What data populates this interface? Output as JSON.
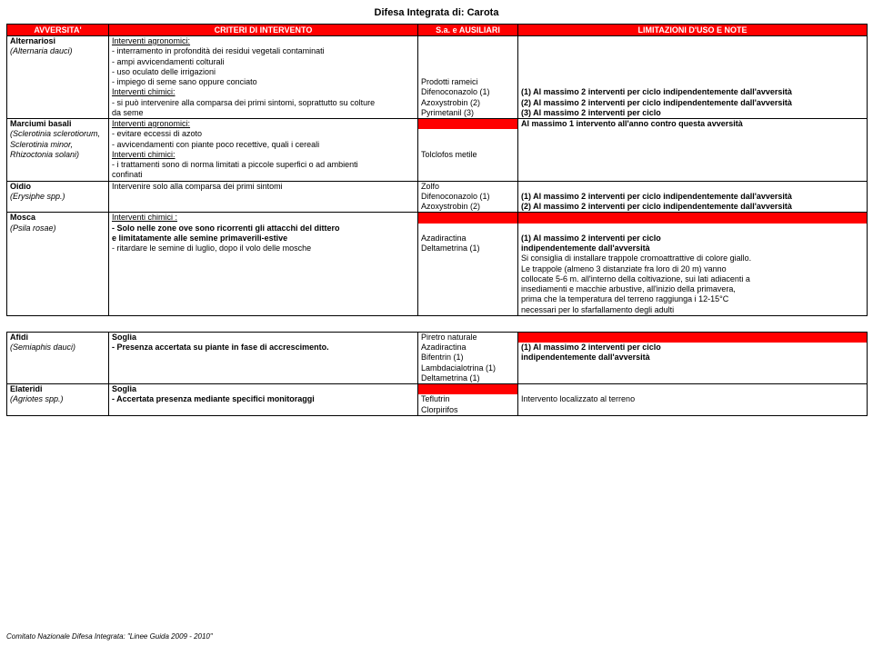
{
  "title": "Difesa Integrata di: Carota",
  "footer": "Comitato Nazionale Difesa Integrata: \"Linee Guida 2009 - 2010\"",
  "headers": {
    "adv": "AVVERSITA'",
    "crit": "CRITERI DI INTERVENTO",
    "aux": "S.a. e AUSILIARI",
    "lim": "LIMITAZIONI D'USO E NOTE"
  },
  "t": {
    "r1c1": "Alternariosi",
    "r1c2u": "Interventi agronomici:",
    "r2c1": "(Alternaria dauci)",
    "r2c2": " -  interramento in profondità dei residui vegetali contaminati",
    "r3c2": " -  ampi avvicendamenti colturali",
    "r4c2": " -  uso oculato delle irrigazioni",
    "r5c2": " -  impiego di seme sano oppure conciato",
    "r5c3": "Prodotti rameici",
    "r6c2u": "Interventi chimici:",
    "r6c3": "Difenoconazolo (1)",
    "r6c4": "(1) Al massimo 2 interventi per ciclo indipendentemente dall'avversità",
    "r7c2": " -  si può intervenire alla comparsa dei primi sintomi, soprattutto su colture",
    "r7c3": "Azoxystrobin (2)",
    "r7c4": "(2) Al massimo 2 interventi per ciclo indipendentemente dall'avversità",
    "r8c2": "da seme",
    "r8c3": "Pyrimetanil (3)",
    "r8c4": "(3) Al massimo 2 interventi per ciclo",
    "r9c1": "Marciumi basali",
    "r9c2u": "Interventi agronomici:",
    "r9c4": "Al massimo 1 intervento all'anno contro questa avversità",
    "r10c1": "(Sclerotinia sclerotiorum,",
    "r10c2": " -  evitare eccessi di azoto",
    "r11c1": "Sclerotinia minor,",
    "r11c2": " -  avvicendamenti con piante poco recettive, quali i cereali",
    "r12c1": "Rhizoctonia solani)",
    "r12c2u": "Interventi chimici:",
    "r12c3": "Tolclofos metile",
    "r13c2": " -  i trattamenti sono di norma limitati a piccole superfici o ad ambienti",
    "r14c2": "    confinati",
    "r15c1": "Oidio",
    "r15c2": "Intervenire solo alla comparsa dei primi sintomi",
    "r15c3": "Zolfo",
    "r16c1": "(Erysiphe spp.)",
    "r16c3": "Difenoconazolo (1)",
    "r16c4": "(1) Al massimo 2 interventi per ciclo indipendentemente dall'avversità",
    "r17c3": "Azoxystrobin (2)",
    "r17c4": "(2) Al massimo 2 interventi per ciclo indipendentemente dall'avversità",
    "r18c1": "Mosca",
    "r18c2u": "Interventi chimici :",
    "r19c1": "(Psila rosae)",
    "r19c2": " - Solo nelle zone ove sono ricorrenti gli attacchi del dittero",
    "r20c2": "    e limitatamente alle semine primaverili-estive",
    "r20c3": "Azadiractina",
    "r20c4": "(1) Al massimo 2 interventi per ciclo",
    "r21c2": " -   ritardare le semine di luglio, dopo il volo delle mosche",
    "r21c3": "Deltametrina (1)",
    "r21c4": "     indipendentemente dall'avversità",
    "r22c4": "Si consiglia di installare trappole cromoattrattive di colore giallo.",
    "r23c4": "Le trappole (almeno 3 distanziate fra loro di 20 m) vanno",
    "r24c4": "collocate 5-6 m. all'interno della coltivazione, sui lati adiacenti a",
    "r25c4": "insediamenti e macchie arbustive, all'inizio della primavera,",
    "r26c4": "prima che la temperatura del terreno raggiunga i 12-15°C",
    "r27c4": "necessari per lo sfarfallamento degli adulti",
    "r28c1": "Afidi",
    "r28c2": "Soglia",
    "r28c3": "Piretro naturale",
    "r29c1": "(Semiaphis dauci)",
    "r29c2": "- Presenza accertata su piante in fase di accrescimento.",
    "r29c3": "Azadiractina",
    "r29c4": "(1) Al massimo 2 interventi per ciclo",
    "r30c3": "Bifentrin (1)",
    "r30c4": "     indipendentemente dall'avversità",
    "r31c3": "Lambdacialotrina (1)",
    "r32c3": "Deltametrina (1)",
    "r33c1": "Elateridi",
    "r33c2": "Soglia",
    "r34c1": "(Agriotes spp.)",
    "r34c2": "- Accertata presenza mediante specifici monitoraggi",
    "r34c3": "Teflutrin",
    "r34c4": "Intervento localizzato al terreno",
    "r35c3": "Clorpirifos"
  },
  "colors": {
    "headerBg": "#ff0000",
    "headerText": "#ffffff",
    "border": "#000000",
    "text": "#000000",
    "bg": "#ffffff"
  }
}
